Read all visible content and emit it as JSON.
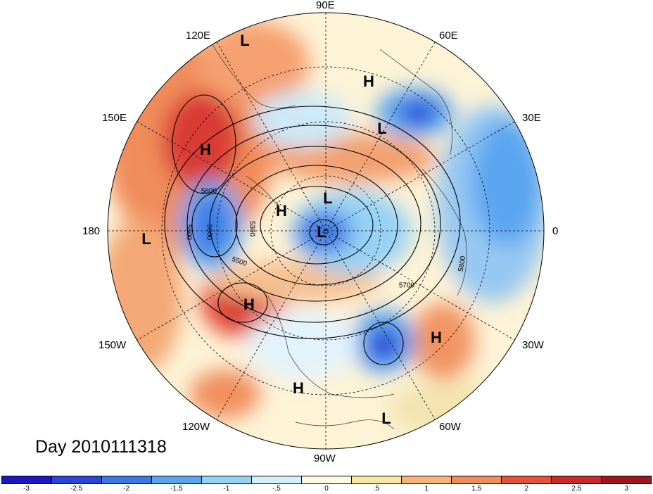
{
  "title": "Day 2010111318",
  "longitude_labels": {
    "n90E": "90E",
    "n120E": "120E",
    "n60E": "60E",
    "n150E": "150E",
    "n30E": "30E",
    "n180": "180",
    "n0": "0",
    "n150W": "150W",
    "n30W": "30W",
    "n120W": "120W",
    "n60W": "60W",
    "n90W": "90W"
  },
  "pressure_systems": [
    {
      "label": "L"
    },
    {
      "label": "H"
    },
    {
      "label": "L"
    },
    {
      "label": "H"
    },
    {
      "label": "H"
    },
    {
      "label": "L"
    },
    {
      "label": "L"
    },
    {
      "label": "L"
    },
    {
      "label": "H"
    },
    {
      "label": "H"
    },
    {
      "label": "H"
    },
    {
      "label": "L"
    }
  ],
  "contour_labels": [
    "5800",
    "5800",
    "5600",
    "5300",
    "5500",
    "5700",
    "5800"
  ],
  "colorbar": {
    "colors": [
      "#1e14c8",
      "#2a46d8",
      "#3c78e6",
      "#5aa5f0",
      "#96d2f5",
      "#d2f0fa",
      "#fffae6",
      "#fae6a0",
      "#f5b478",
      "#f08c5a",
      "#e6503c",
      "#cd2828",
      "#a01420"
    ],
    "ticks": [
      "-3",
      "-2.5",
      "-2",
      "-1.5",
      "-1",
      "-.5",
      "0",
      ".5",
      "1",
      "1.5",
      "2",
      "2.5",
      "3"
    ]
  }
}
